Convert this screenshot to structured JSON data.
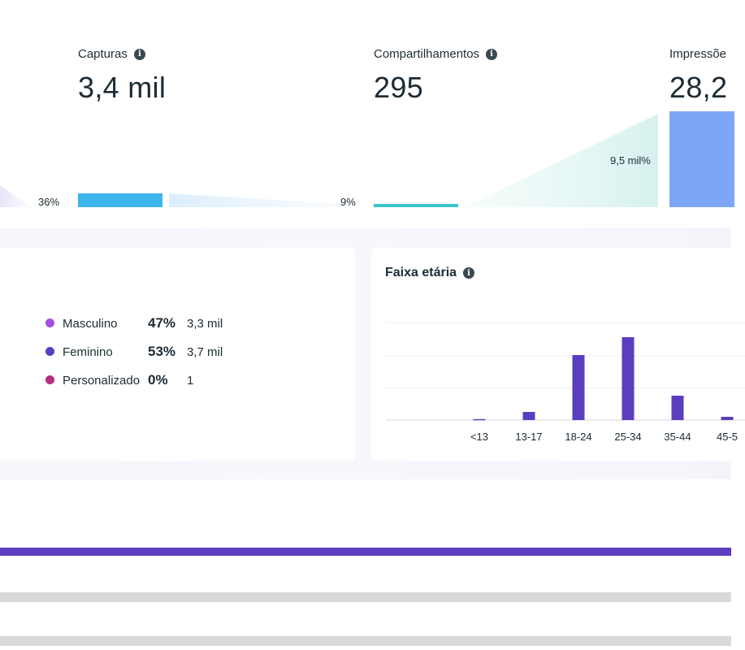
{
  "funnel": {
    "metrics": [
      {
        "title": "Capturas",
        "value": "3,4 mil"
      },
      {
        "title": "Compartilhamentos",
        "value": "295"
      },
      {
        "title": "Impressõe",
        "value": "28,2"
      }
    ],
    "conversions": [
      "36%",
      "9%",
      "9,5 mil%"
    ],
    "colors": {
      "captures": "#3cb4ec",
      "shares": "#3ac5cc",
      "impressions": "#7ea6f8"
    }
  },
  "gender": {
    "items": [
      {
        "label": "Masculino",
        "percent": "47%",
        "count": "3,3 mil",
        "color": "#a24fe0"
      },
      {
        "label": "Feminino",
        "percent": "53%",
        "count": "3,7 mil",
        "color": "#5b3ec0"
      },
      {
        "label": "Personalizado",
        "percent": "0%",
        "count": "1",
        "color": "#b52d7e"
      }
    ]
  },
  "age": {
    "title": "Faixa etária",
    "chart_data": {
      "type": "bar",
      "categories": [
        "<13",
        "13-17",
        "18-24",
        "25-34",
        "35-44",
        "45-5"
      ],
      "values": [
        0.3,
        2.5,
        20,
        25.5,
        7.5,
        1
      ],
      "ylim": [
        0,
        30
      ],
      "grid": true,
      "color": "#5b3ec0"
    }
  }
}
